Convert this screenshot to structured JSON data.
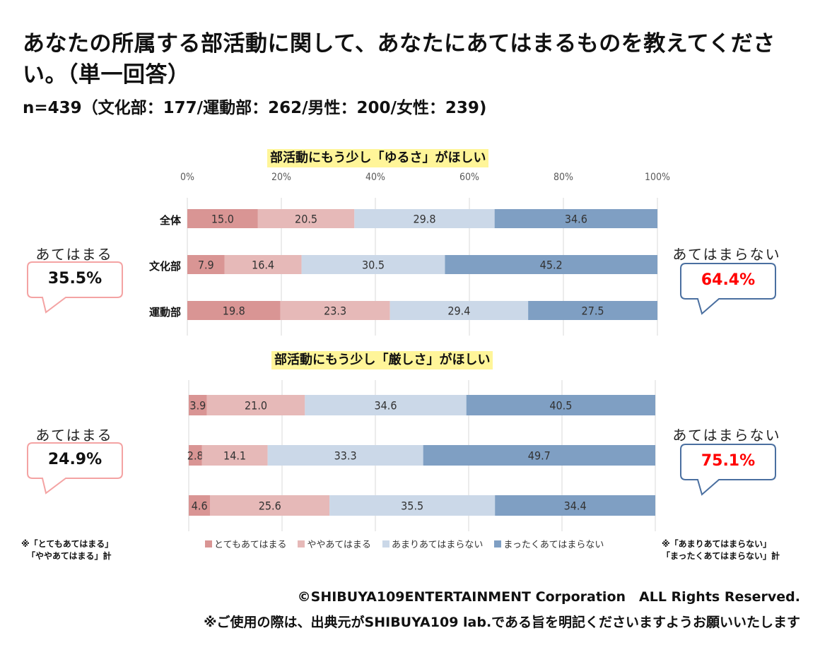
{
  "title": "あなたの所属する部活動に関して、あなたにあてはまるものを教えてください。（単一回答）",
  "subtitle": "n=439（文化部：177/運動部：262/男性：200/女性：239)",
  "colors": {
    "very": "#d99594",
    "somewhat": "#e6b9b8",
    "not_much": "#cbd8e8",
    "not_at_all": "#7f9fc3",
    "highlight": "#fff599",
    "bubble_pink": "#f4a3a3",
    "bubble_blue": "#4a6fa0",
    "red_value": "#ff0000"
  },
  "legend": [
    {
      "label": "とてもあてはまる",
      "color": "#d99594"
    },
    {
      "label": "ややあてはまる",
      "color": "#e6b9b8"
    },
    {
      "label": "あまりあてはまらない",
      "color": "#cbd8e8"
    },
    {
      "label": "まったくあてはまらない",
      "color": "#7f9fc3"
    }
  ],
  "axis_ticks": [
    "0%",
    "20%",
    "40%",
    "60%",
    "80%",
    "100%"
  ],
  "callouts": {
    "top_left": {
      "label": "あてはまる",
      "value": "35.5%"
    },
    "top_right": {
      "label": "あてはまらない※",
      "value": "64.4%"
    },
    "bottom_left": {
      "label": "あてはまる",
      "value": "24.9%"
    },
    "bottom_right": {
      "label": "あてはまらない※",
      "value": "75.1%"
    }
  },
  "notes": {
    "left_line1": "※「とてもあてはまる」",
    "left_line2": "「ややあてはまる」計",
    "right_line1": "※「あまりあてはまらない」",
    "right_line2": "「まったくあてはまらない」計"
  },
  "footer": {
    "copyright": "©SHIBUYA109ENTERTAINMENT Corporation　ALL Rights Reserved.",
    "usage": "※ご使用の際は、出典元がSHIBUYA109 lab.である旨を明記くださいますようお願いいたします"
  },
  "chart_data": [
    {
      "type": "bar",
      "orientation": "horizontal-stacked-100",
      "title": "部活動にもう少し「ゆるさ」がほしい",
      "categories": [
        "全体",
        "文化部",
        "運動部"
      ],
      "xlim": [
        0,
        100
      ],
      "xticks": [
        "0%",
        "20%",
        "40%",
        "60%",
        "80%",
        "100%"
      ],
      "grid": true,
      "legend": "bottom",
      "series": [
        {
          "name": "とてもあてはまる",
          "values": [
            15.0,
            7.9,
            19.8
          ]
        },
        {
          "name": "ややあてはまる",
          "values": [
            20.5,
            16.4,
            23.3
          ]
        },
        {
          "name": "あまりあてはまらない",
          "values": [
            29.8,
            30.5,
            29.4
          ]
        },
        {
          "name": "まったくあてはまらない",
          "values": [
            34.6,
            45.2,
            27.5
          ]
        }
      ]
    },
    {
      "type": "bar",
      "orientation": "horizontal-stacked-100",
      "title": "部活動にもう少し「厳しさ」がほしい",
      "categories": [
        "全体",
        "文化部",
        "運動部"
      ],
      "show_category_labels": false,
      "xlim": [
        0,
        100
      ],
      "grid": true,
      "legend": "bottom",
      "series": [
        {
          "name": "とてもあてはまる",
          "values": [
            3.9,
            2.8,
            4.6
          ]
        },
        {
          "name": "ややあてはまる",
          "values": [
            21.0,
            14.1,
            25.6
          ]
        },
        {
          "name": "あまりあてはまらない",
          "values": [
            34.6,
            33.3,
            35.5
          ]
        },
        {
          "name": "まったくあてはまらない",
          "values": [
            40.5,
            49.7,
            34.4
          ]
        }
      ]
    }
  ]
}
